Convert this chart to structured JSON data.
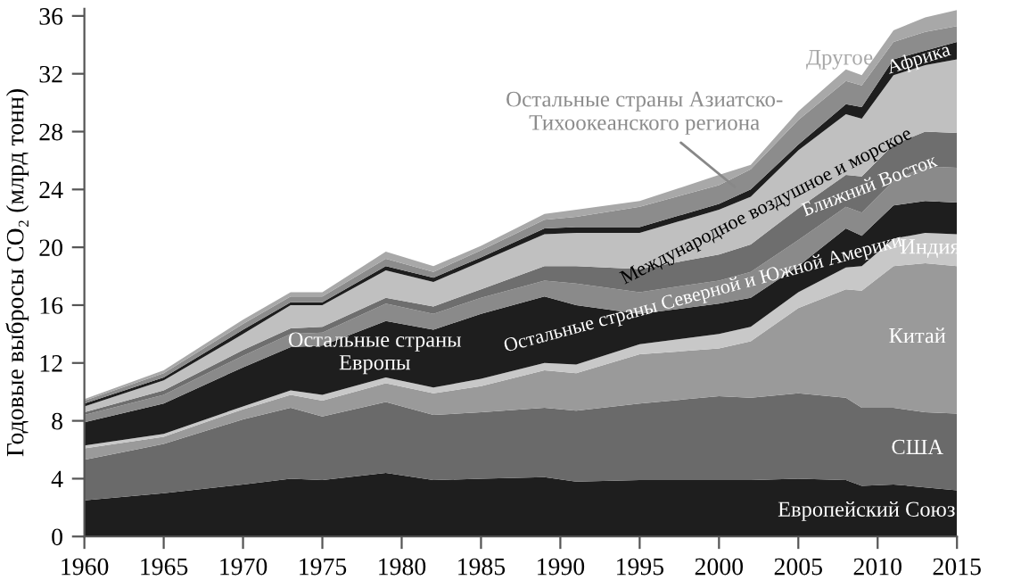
{
  "chart_data": {
    "type": "area",
    "stacked": true,
    "ylabel": "Годовые выбросы CO₂ (млрд тонн)",
    "x": [
      1960,
      1965,
      1970,
      1973,
      1975,
      1979,
      1982,
      1985,
      1989,
      1991,
      1995,
      2000,
      2002,
      2005,
      2008,
      2009,
      2011,
      2013,
      2015
    ],
    "xlim": [
      1960,
      2015
    ],
    "xticks": [
      1960,
      1965,
      1970,
      1975,
      1980,
      1985,
      1990,
      1995,
      2000,
      2005,
      2010,
      2015
    ],
    "ylim": [
      0,
      36.5
    ],
    "yticks": [
      0,
      4,
      8,
      12,
      16,
      20,
      24,
      28,
      32,
      36
    ],
    "grid": false,
    "legend": false,
    "series": [
      {
        "name": "Европейский Союз",
        "color": "#1e1e1e",
        "values": [
          2.5,
          3.0,
          3.6,
          4.0,
          3.9,
          4.4,
          3.9,
          4.0,
          4.1,
          3.8,
          3.9,
          3.9,
          3.9,
          4.0,
          3.9,
          3.5,
          3.6,
          3.4,
          3.2
        ]
      },
      {
        "name": "США",
        "color": "#6a6a6a",
        "values": [
          2.8,
          3.4,
          4.5,
          4.9,
          4.4,
          4.9,
          4.5,
          4.6,
          4.8,
          4.9,
          5.3,
          5.8,
          5.7,
          5.9,
          5.7,
          5.4,
          5.3,
          5.2,
          5.3
        ]
      },
      {
        "name": "Китай",
        "color": "#9a9a9a",
        "values": [
          0.8,
          0.5,
          0.7,
          0.9,
          1.1,
          1.3,
          1.5,
          1.8,
          2.6,
          2.6,
          3.4,
          3.3,
          3.9,
          5.9,
          7.5,
          8.1,
          9.8,
          10.3,
          10.2
        ]
      },
      {
        "name": "Индия",
        "color": "#c8c8c8",
        "values": [
          0.2,
          0.2,
          0.2,
          0.3,
          0.4,
          0.4,
          0.4,
          0.5,
          0.5,
          0.6,
          0.7,
          1.0,
          1.0,
          1.1,
          1.5,
          1.7,
          1.9,
          2.1,
          2.2
        ]
      },
      {
        "name": "Остальные страны\nЕвропы",
        "color": "#1e1e1e",
        "values": [
          1.6,
          2.1,
          2.7,
          3.0,
          3.4,
          3.9,
          4.0,
          4.5,
          4.6,
          4.1,
          2.1,
          2.1,
          2.0,
          1.8,
          2.7,
          2.1,
          2.3,
          2.2,
          2.2
        ]
      },
      {
        "name": "Остальные страны Северной и Южной Америки",
        "color": "#8a8a8a",
        "values": [
          0.5,
          0.6,
          0.8,
          0.9,
          0.9,
          1.2,
          1.1,
          1.1,
          1.1,
          1.5,
          1.5,
          1.6,
          1.8,
          1.8,
          1.5,
          1.6,
          1.7,
          2.4,
          2.4
        ]
      },
      {
        "name": "Ближний Восток",
        "color": "#6e6e6e",
        "values": [
          0.2,
          0.3,
          0.4,
          0.4,
          0.4,
          0.4,
          0.5,
          0.6,
          1.0,
          1.2,
          1.6,
          1.8,
          1.9,
          2.2,
          2.2,
          2.5,
          2.5,
          2.4,
          2.4
        ]
      },
      {
        "name": "Международное воздушное и морское",
        "color": "#c0c0c0",
        "values": [
          0.4,
          0.7,
          1.1,
          1.6,
          1.5,
          1.9,
          1.7,
          1.9,
          2.2,
          2.3,
          2.5,
          3.1,
          3.3,
          4.0,
          4.2,
          4.0,
          4.8,
          4.6,
          5.1
        ]
      },
      {
        "name": "Африка",
        "color": "#1e1e1e",
        "values": [
          0.2,
          0.2,
          0.3,
          0.2,
          0.2,
          0.3,
          0.3,
          0.3,
          0.4,
          0.4,
          0.4,
          0.4,
          0.5,
          0.4,
          0.7,
          0.8,
          1.1,
          1.0,
          1.2
        ]
      },
      {
        "name": "Остальные страны Азиатско-\nТихоокеанского региона",
        "color": "#8c8c8c",
        "values": [
          0.2,
          0.3,
          0.4,
          0.4,
          0.4,
          0.5,
          0.4,
          0.5,
          0.6,
          0.7,
          1.4,
          1.3,
          1.4,
          1.7,
          1.6,
          1.5,
          1.2,
          1.3,
          1.1
        ]
      },
      {
        "name": "Другое",
        "color": "#a8a8a8",
        "values": [
          0.1,
          0.2,
          0.3,
          0.3,
          0.3,
          0.5,
          0.4,
          0.3,
          0.4,
          0.5,
          0.4,
          0.7,
          0.3,
          0.6,
          0.8,
          0.7,
          0.8,
          1.0,
          1.1
        ]
      }
    ]
  }
}
